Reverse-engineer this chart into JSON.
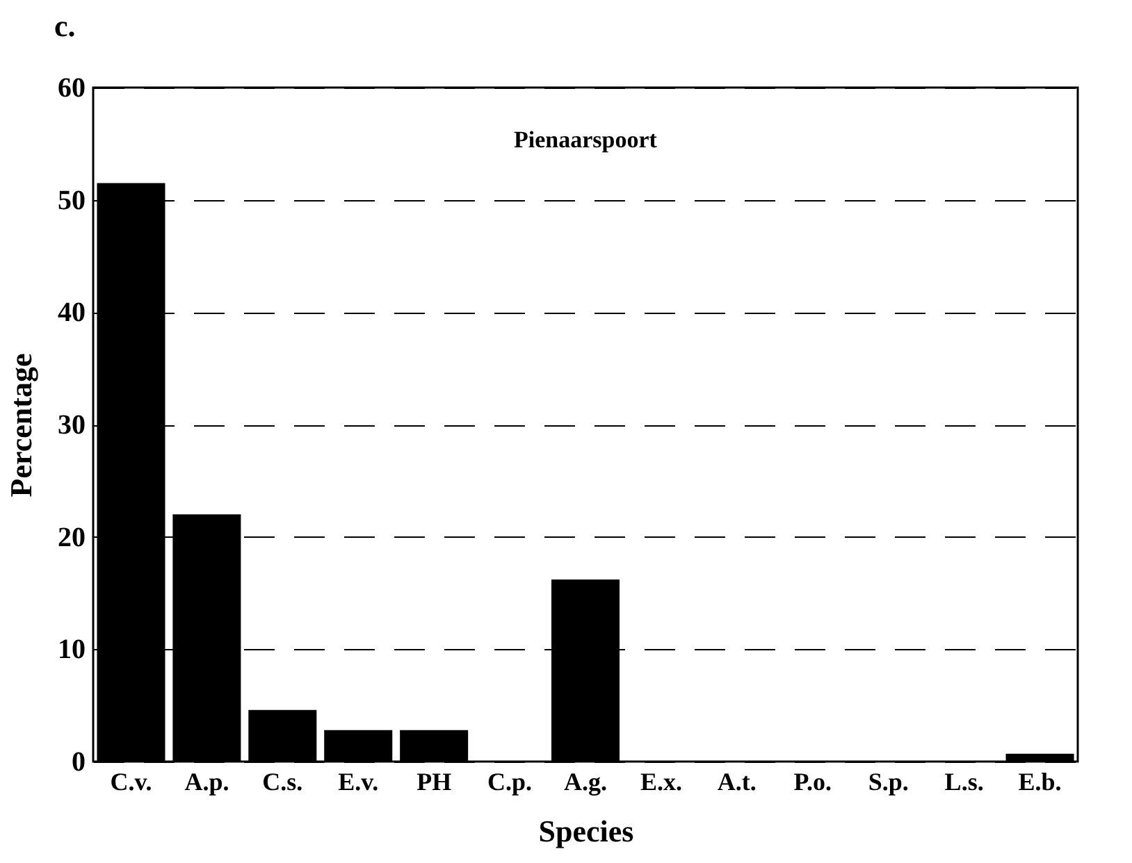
{
  "chart_data": {
    "type": "bar",
    "title": "c.",
    "xlabel": "Species",
    "ylabel": "Percentage",
    "annotations": [
      "Pienaarspoort"
    ],
    "categories": [
      "C.v.",
      "A.p.",
      "C.s.",
      "E.v.",
      "PH",
      "C.p.",
      "A.g.",
      "E.x.",
      "A.t.",
      "P.o.",
      "S.p.",
      "L.s.",
      "E.b."
    ],
    "values": [
      51.5,
      22,
      4.6,
      2.8,
      2.8,
      0,
      16.2,
      0,
      0,
      0,
      0,
      0,
      0.7
    ],
    "color": "#000000",
    "ylim": [
      0,
      60
    ],
    "yticks": [
      0,
      10,
      20,
      30,
      40,
      50,
      60
    ],
    "grid": "y",
    "line_style": "dashed"
  }
}
